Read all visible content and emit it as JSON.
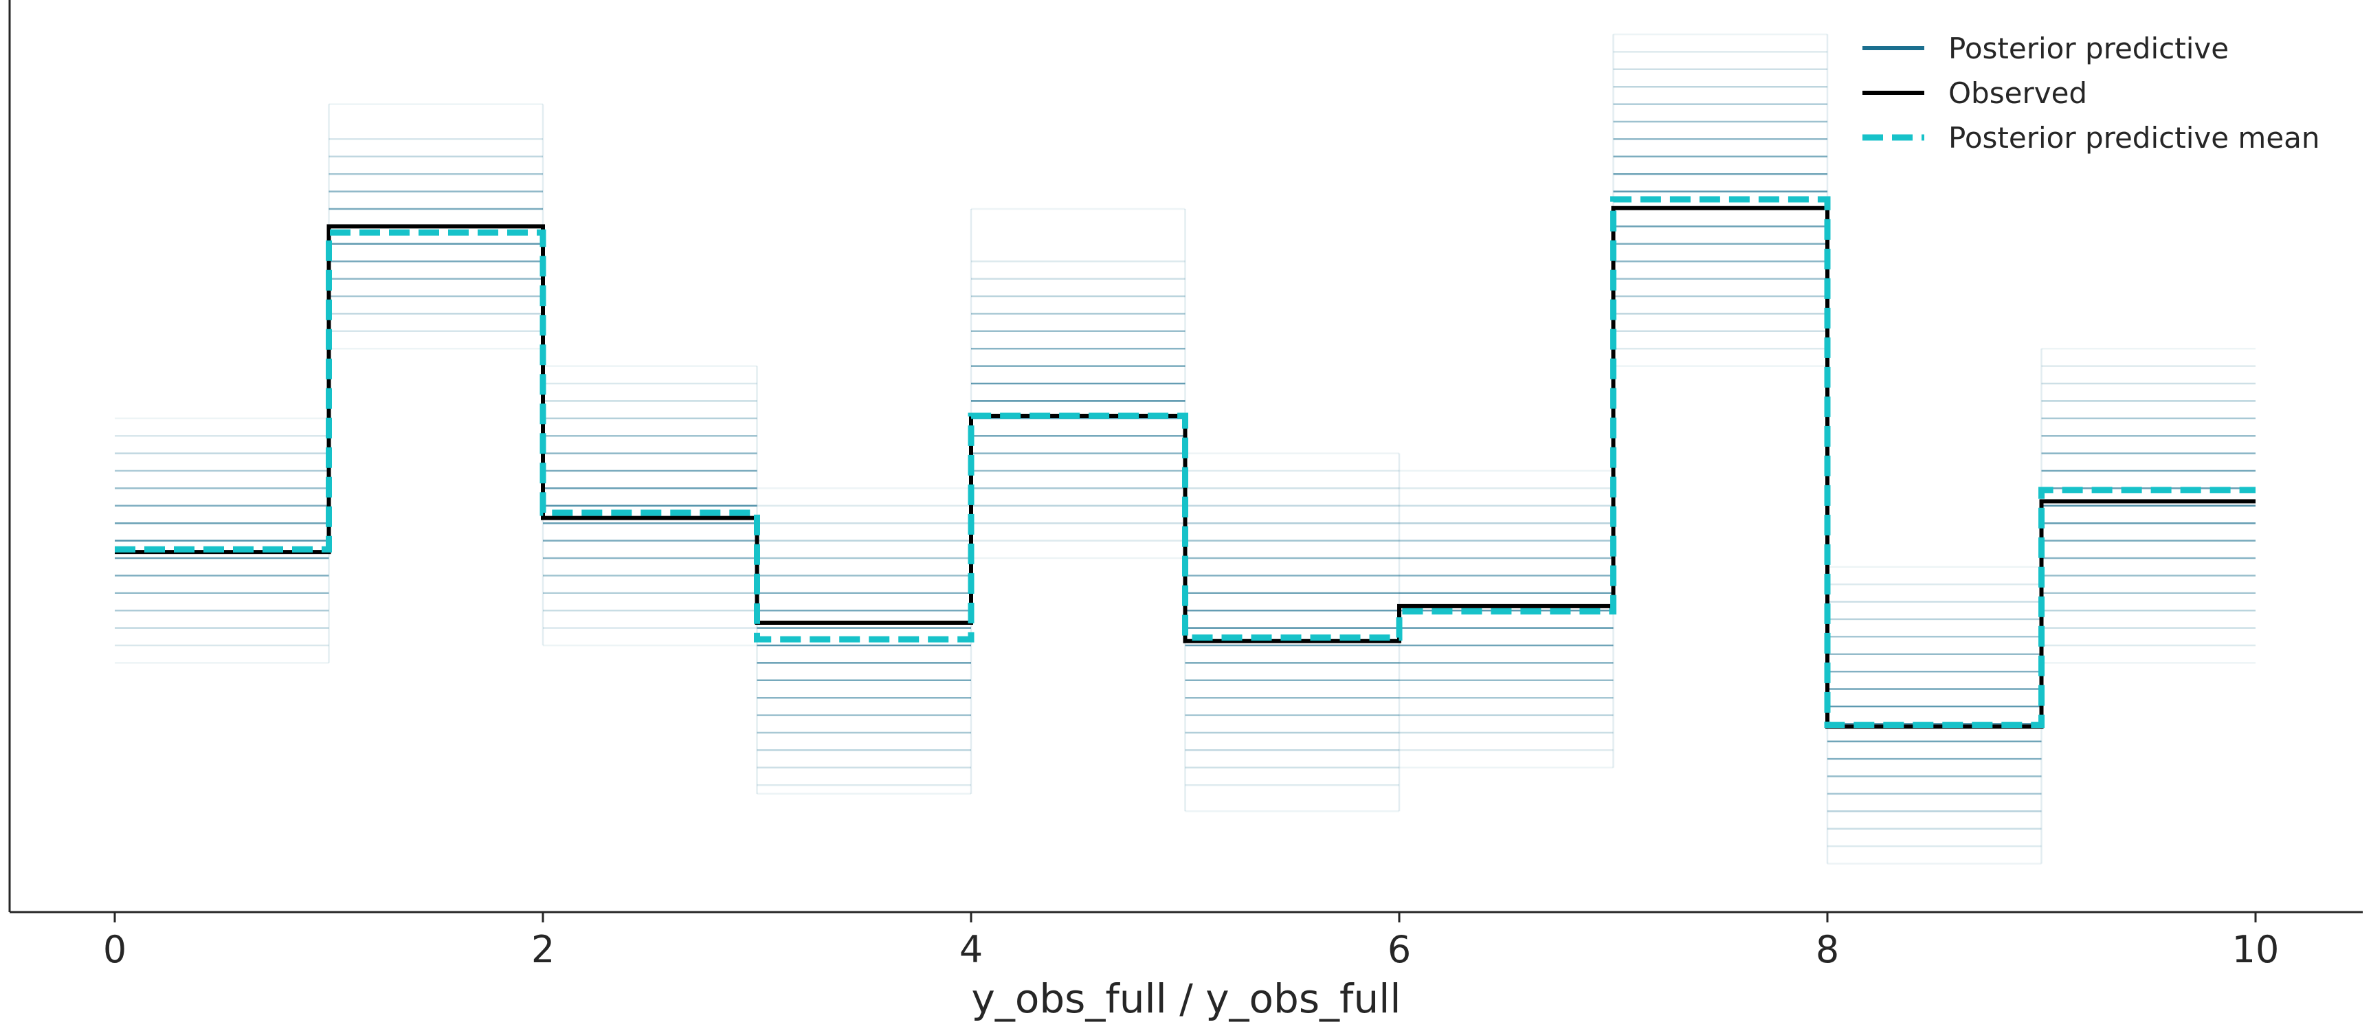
{
  "chart_data": {
    "type": "line",
    "drawstyle": "steps-post",
    "xlabel": "y_obs_full / y_obs_full",
    "ylabel": "",
    "xlim": [
      -0.5,
      10.5
    ],
    "ylim": [
      0,
      1.0
    ],
    "xticks": [
      0,
      2,
      4,
      6,
      8,
      10
    ],
    "grid": false,
    "legend_position": "top-right",
    "colors": {
      "posterior_predictive": "#1b6f8f",
      "observed": "#000000",
      "posterior_predictive_mean": "#17c2c9",
      "axis": "#262626"
    },
    "x": [
      0,
      1,
      2,
      3,
      4,
      5,
      6,
      7,
      8,
      9
    ],
    "series": [
      {
        "name": "Observed",
        "style": "solid",
        "values": [
          0.407,
          0.78,
          0.446,
          0.326,
          0.563,
          0.305,
          0.345,
          0.801,
          0.207,
          0.465
        ]
      },
      {
        "name": "Posterior predictive mean",
        "style": "dashed",
        "values": [
          0.41,
          0.773,
          0.452,
          0.307,
          0.563,
          0.309,
          0.339,
          0.811,
          0.209,
          0.478
        ]
      }
    ],
    "posterior_predictive": {
      "name": "Posterior predictive",
      "levels": [
        [
          0.56,
          0.54,
          0.52,
          0.5,
          0.48,
          0.46,
          0.44,
          0.42,
          0.4,
          0.38,
          0.36,
          0.34,
          0.32,
          0.3,
          0.28
        ],
        [
          0.92,
          0.88,
          0.86,
          0.84,
          0.82,
          0.8,
          0.78,
          0.76,
          0.74,
          0.72,
          0.7,
          0.68,
          0.66,
          0.64
        ],
        [
          0.62,
          0.6,
          0.58,
          0.56,
          0.54,
          0.52,
          0.5,
          0.48,
          0.46,
          0.44,
          0.42,
          0.4,
          0.38,
          0.36,
          0.34,
          0.32,
          0.3
        ],
        [
          0.48,
          0.46,
          0.44,
          0.42,
          0.4,
          0.38,
          0.36,
          0.34,
          0.32,
          0.3,
          0.28,
          0.26,
          0.24,
          0.22,
          0.2,
          0.18,
          0.16,
          0.14,
          0.13
        ],
        [
          0.8,
          0.74,
          0.72,
          0.7,
          0.68,
          0.66,
          0.64,
          0.62,
          0.6,
          0.58,
          0.56,
          0.54,
          0.52,
          0.5,
          0.48,
          0.46,
          0.44,
          0.42,
          0.4
        ],
        [
          0.52,
          0.5,
          0.48,
          0.46,
          0.44,
          0.42,
          0.4,
          0.38,
          0.36,
          0.34,
          0.32,
          0.3,
          0.28,
          0.26,
          0.24,
          0.22,
          0.2,
          0.18,
          0.16,
          0.14,
          0.11
        ],
        [
          0.5,
          0.48,
          0.46,
          0.44,
          0.42,
          0.4,
          0.38,
          0.36,
          0.34,
          0.32,
          0.3,
          0.28,
          0.26,
          0.24,
          0.22,
          0.2,
          0.18,
          0.16
        ],
        [
          1.0,
          0.98,
          0.96,
          0.94,
          0.92,
          0.9,
          0.88,
          0.86,
          0.84,
          0.82,
          0.8,
          0.78,
          0.76,
          0.74,
          0.72,
          0.7,
          0.68,
          0.66,
          0.64,
          0.62
        ],
        [
          0.39,
          0.37,
          0.35,
          0.33,
          0.31,
          0.29,
          0.27,
          0.25,
          0.23,
          0.21,
          0.19,
          0.17,
          0.15,
          0.13,
          0.11,
          0.09,
          0.07,
          0.05
        ],
        [
          0.64,
          0.62,
          0.6,
          0.58,
          0.56,
          0.54,
          0.52,
          0.5,
          0.48,
          0.46,
          0.44,
          0.42,
          0.4,
          0.38,
          0.36,
          0.34,
          0.32,
          0.3,
          0.28
        ]
      ]
    },
    "legend": [
      {
        "label": "Posterior predictive",
        "color": "#1b6f8f",
        "style": "solid"
      },
      {
        "label": "Observed",
        "color": "#000000",
        "style": "solid"
      },
      {
        "label": "Posterior predictive mean",
        "color": "#17c2c9",
        "style": "dashed"
      }
    ]
  }
}
